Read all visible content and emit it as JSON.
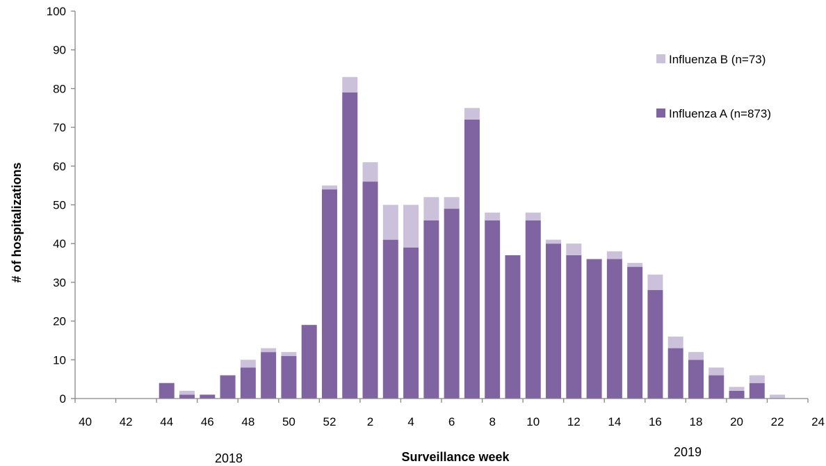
{
  "chart_data": {
    "type": "bar",
    "stacked": true,
    "xlabel": "Surveillance week",
    "ylabel": "# of hospitalizations",
    "ylim": [
      0,
      100
    ],
    "y_ticks": [
      0,
      10,
      20,
      30,
      40,
      50,
      60,
      70,
      80,
      90,
      100
    ],
    "x_tick_labels": [
      "40",
      "42",
      "44",
      "46",
      "48",
      "50",
      "52",
      "2",
      "4",
      "6",
      "8",
      "10",
      "12",
      "14",
      "16",
      "18",
      "20",
      "22",
      "24"
    ],
    "year_labels": [
      "2018",
      "2019"
    ],
    "categories": [
      "40",
      "41",
      "42",
      "43",
      "44",
      "45",
      "46",
      "47",
      "48",
      "49",
      "50",
      "51",
      "52",
      "1",
      "2",
      "3",
      "4",
      "5",
      "6",
      "7",
      "8",
      "9",
      "10",
      "11",
      "12",
      "13",
      "14",
      "15",
      "16",
      "17",
      "18",
      "19",
      "20",
      "21",
      "22",
      "23"
    ],
    "series": [
      {
        "name": "Influenza A (n=873)",
        "color": "#8064a2",
        "values": [
          0,
          0,
          0,
          0,
          4,
          1,
          1,
          6,
          8,
          12,
          11,
          19,
          54,
          79,
          56,
          41,
          39,
          46,
          49,
          72,
          46,
          37,
          46,
          40,
          37,
          36,
          36,
          34,
          28,
          13,
          10,
          6,
          2,
          4,
          0,
          0
        ]
      },
      {
        "name": "Influenza B (n=73)",
        "color": "#ccc1da",
        "values": [
          0,
          0,
          0,
          0,
          0,
          1,
          0,
          0,
          2,
          1,
          1,
          0,
          1,
          4,
          5,
          9,
          11,
          6,
          3,
          3,
          2,
          0,
          2,
          1,
          3,
          0,
          2,
          1,
          4,
          3,
          2,
          2,
          1,
          2,
          1,
          0
        ]
      }
    ],
    "legend": {
      "position": "top-right",
      "order": [
        "Influenza B (n=73)",
        "Influenza A (n=873)"
      ]
    },
    "grid": false
  }
}
